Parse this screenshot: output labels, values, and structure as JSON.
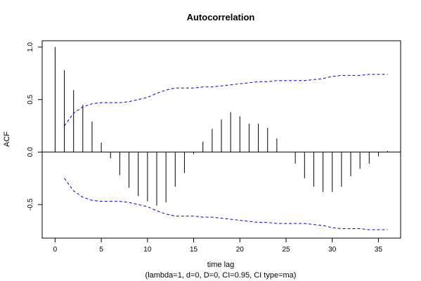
{
  "chart_data": {
    "type": "bar",
    "title": "Autocorrelation",
    "xlabel": "time lag",
    "subtitle": "(lambda=1, d=0, D=0, CI=0.95, CI type=ma)",
    "ylabel": "ACF",
    "xlim": [
      -1.4,
      37.4
    ],
    "ylim": [
      -0.82,
      1.06
    ],
    "x_ticks": [
      0,
      5,
      10,
      15,
      20,
      25,
      30,
      35
    ],
    "y_ticks": [
      -0.5,
      0.0,
      0.5,
      1.0
    ],
    "y_tick_labels": [
      "-0.5",
      "0.0",
      "0.5",
      "1.0"
    ],
    "grid": false,
    "lags": [
      0,
      1,
      2,
      3,
      4,
      5,
      6,
      7,
      8,
      9,
      10,
      11,
      12,
      13,
      14,
      15,
      16,
      17,
      18,
      19,
      20,
      21,
      22,
      23,
      24,
      25,
      26,
      27,
      28,
      29,
      30,
      31,
      32,
      33,
      34,
      35,
      36
    ],
    "acf": [
      1.0,
      0.78,
      0.59,
      0.45,
      0.29,
      0.09,
      -0.06,
      -0.22,
      -0.34,
      -0.42,
      -0.47,
      -0.51,
      -0.48,
      -0.33,
      -0.2,
      -0.02,
      0.1,
      0.22,
      0.31,
      0.38,
      0.34,
      0.27,
      0.27,
      0.23,
      0.13,
      0.0,
      -0.11,
      -0.25,
      -0.33,
      -0.38,
      -0.38,
      -0.33,
      -0.23,
      -0.16,
      -0.11,
      -0.04,
      0.01
    ],
    "ci_upper": [
      null,
      0.25,
      0.37,
      0.43,
      0.46,
      0.47,
      0.47,
      0.47,
      0.48,
      0.5,
      0.52,
      0.56,
      0.59,
      0.61,
      0.61,
      0.61,
      0.62,
      0.62,
      0.63,
      0.64,
      0.65,
      0.66,
      0.67,
      0.67,
      0.68,
      0.68,
      0.68,
      0.68,
      0.69,
      0.7,
      0.72,
      0.73,
      0.73,
      0.73,
      0.74,
      0.74,
      0.74
    ],
    "ci_lower": [
      null,
      -0.25,
      -0.37,
      -0.43,
      -0.46,
      -0.47,
      -0.47,
      -0.47,
      -0.48,
      -0.5,
      -0.52,
      -0.56,
      -0.59,
      -0.61,
      -0.61,
      -0.61,
      -0.62,
      -0.62,
      -0.63,
      -0.64,
      -0.65,
      -0.66,
      -0.67,
      -0.67,
      -0.68,
      -0.68,
      -0.68,
      -0.68,
      -0.69,
      -0.7,
      -0.72,
      -0.73,
      -0.73,
      -0.73,
      -0.74,
      -0.74,
      -0.74
    ],
    "colors": {
      "spikes": "#000000",
      "ci": "#0000cc"
    }
  }
}
